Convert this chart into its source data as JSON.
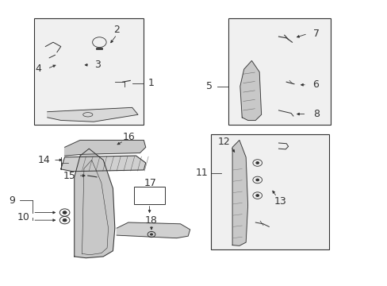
{
  "bg_color": "#ffffff",
  "diagram_bg": "#f0f0f0",
  "line_color": "#333333",
  "title": "",
  "figsize": [
    4.89,
    3.6
  ],
  "dpi": 100
}
